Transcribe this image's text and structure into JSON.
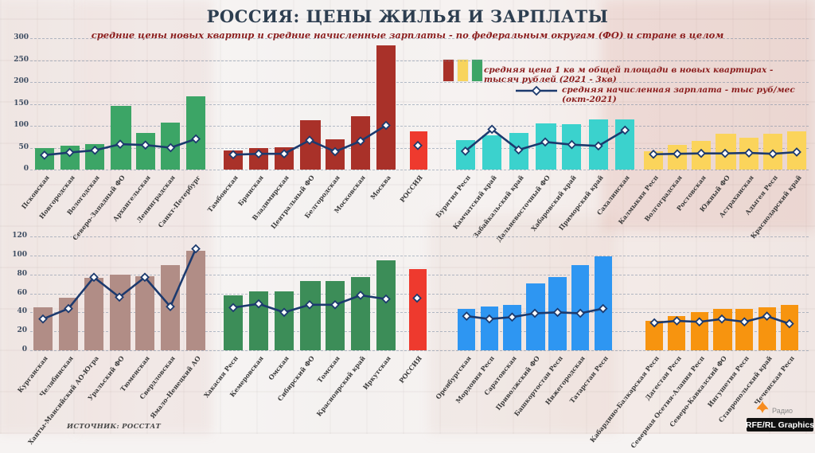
{
  "header": {
    "title": "РОССИЯ: ЦЕНЫ ЖИЛЬЯ И ЗАРПЛАТЫ",
    "subtitle": "средние цены новых квартир  и средние начисленные зарплаты - по федеральным округам (ФО) и стране в целом"
  },
  "legend": {
    "price_label": "средняя цена 1 кв м общей площади в новых квартирах - тысяч рублей (2021 - 3кв)",
    "salary_label": "средняя начисленная зарплата - тыс руб/мес (окт-2021)",
    "price_swatch_colors": [
      "#a93129",
      "#f8d45c",
      "#3ca566"
    ],
    "salary_line_color": "#1c3a6e"
  },
  "source": "ИСТОЧНИК: РОССТАТ",
  "branding": {
    "radio_label": "Радио",
    "credit": "RFE/RL Graphics",
    "bird_color": "#f68b1f"
  },
  "chart_data": {
    "type": "bar",
    "subtype": "bar+line combo, grouped by federal district",
    "bar_series_name": "средняя цена 1 кв м общей площади в новых квартирах - тысяч рублей (2021 - 3кв)",
    "line_series_name": "средняя начисленная зарплата - тыс руб/мес (окт-2021)",
    "line_color": "#1c3a6e",
    "grid": true,
    "rows": [
      {
        "ylim": [
          0,
          300
        ],
        "yticks": [
          300,
          250,
          200,
          150,
          100,
          50,
          0
        ],
        "groups": [
          {
            "id": "northwest",
            "color": "#3ca566",
            "hatched_index": 3,
            "categories": [
              "Псковская",
              "Новгородская",
              "Вологодская",
              "Северо-Западный ФО",
              "Архангельская",
              "Ленинградская",
              "Санкт-Петербург"
            ],
            "price": [
              50,
              54,
              58,
              141,
              84,
              107,
              168
            ],
            "salary": [
              33,
              39,
              44,
              58,
              56,
              50,
              70
            ]
          },
          {
            "id": "central",
            "color": "#a93129",
            "hatched_index": 3,
            "categories": [
              "Тамбовская",
              "Брянская",
              "Владимирская",
              "Центральный ФО",
              "Белгородская",
              "Московская",
              "Москва"
            ],
            "price": [
              44,
              49,
              51,
              110,
              69,
              121,
              283
            ],
            "salary": [
              34,
              36,
              36,
              67,
              41,
              65,
              101
            ]
          },
          {
            "id": "russia-top",
            "color": "#ee3a2e",
            "hatched_index": 0,
            "categories": [
              "РОССИЯ"
            ],
            "price": [
              84
            ],
            "salary": [
              55
            ]
          },
          {
            "id": "fareast",
            "color": "#3bd2cd",
            "hatched_index": 3,
            "categories": [
              "Бурятия Респ",
              "Камчатский край",
              "Забайкальский край",
              "Дальневосточный ФО",
              "Хабаровский край",
              "Приморский край",
              "Сахалинская"
            ],
            "price": [
              67,
              78,
              84,
              102,
              104,
              115,
              115
            ],
            "salary": [
              42,
              92,
              45,
              63,
              57,
              54,
              90
            ]
          },
          {
            "id": "south",
            "color": "#fbd45b",
            "hatched_index": 3,
            "categories": [
              "Калмыкия Респ",
              "Волгоградская",
              "Ростовская",
              "Южный ФО",
              "Астраханская",
              "Адыгея Респ",
              "Краснодарский край"
            ],
            "price": [
              41,
              57,
              66,
              79,
              72,
              82,
              87
            ],
            "salary": [
              35,
              36,
              37,
              37,
              38,
              36,
              40
            ]
          }
        ]
      },
      {
        "ylim": [
          0,
          120
        ],
        "yticks": [
          120,
          100,
          80,
          60,
          40,
          20,
          0
        ],
        "groups": [
          {
            "id": "ural",
            "color": "#b18d86",
            "hatched_index": 3,
            "categories": [
              "Курганская",
              "Челябинская",
              "Ханты-Мансийский АО-Югра",
              "Уральский ФО",
              "Тюменская",
              "Свердловская",
              "Ямало-Ненецкий АО"
            ],
            "price": [
              45,
              55,
              76,
              78,
              78,
              90,
              105
            ],
            "salary": [
              33,
              44,
              77,
              56,
              77,
              46,
              107
            ]
          },
          {
            "id": "siberia",
            "color": "#3c8d58",
            "hatched_index": 3,
            "categories": [
              "Хакасия Респ",
              "Кемеровская",
              "Омская",
              "Сибирский ФО",
              "Томская",
              "Красноярский край",
              "Иркутская"
            ],
            "price": [
              58,
              62,
              62,
              71,
              73,
              77,
              95
            ],
            "salary": [
              45,
              49,
              40,
              48,
              48,
              58,
              54
            ]
          },
          {
            "id": "russia-bottom",
            "color": "#ee3a2e",
            "hatched_index": 0,
            "categories": [
              "РОССИЯ"
            ],
            "price": [
              84
            ],
            "salary": [
              55
            ]
          },
          {
            "id": "volga",
            "color": "#2e96f2",
            "hatched_index": 3,
            "categories": [
              "Оренбургская",
              "Мордовия Респ",
              "Саратовская",
              "Приволжский ФО",
              "Башкортостан Респ",
              "Нижегородская",
              "Татарстан Респ"
            ],
            "price": [
              44,
              46,
              48,
              69,
              77,
              90,
              99
            ],
            "salary": [
              36,
              33,
              35,
              39,
              40,
              39,
              44
            ]
          },
          {
            "id": "caucasus",
            "color": "#f7940f",
            "hatched_index": 3,
            "categories": [
              "Кабардино-Балкарская Респ",
              "Дагестан Респ",
              "Северная Осетия-Алания Респ",
              "Северо-Кавказский ФО",
              "Ингушетия Респ",
              "Ставропольский край",
              "Чеченская Респ"
            ],
            "price": [
              31,
              36,
              40,
              42,
              44,
              45,
              48
            ],
            "salary": [
              29,
              31,
              30,
              33,
              30,
              36,
              28
            ]
          }
        ]
      }
    ]
  }
}
